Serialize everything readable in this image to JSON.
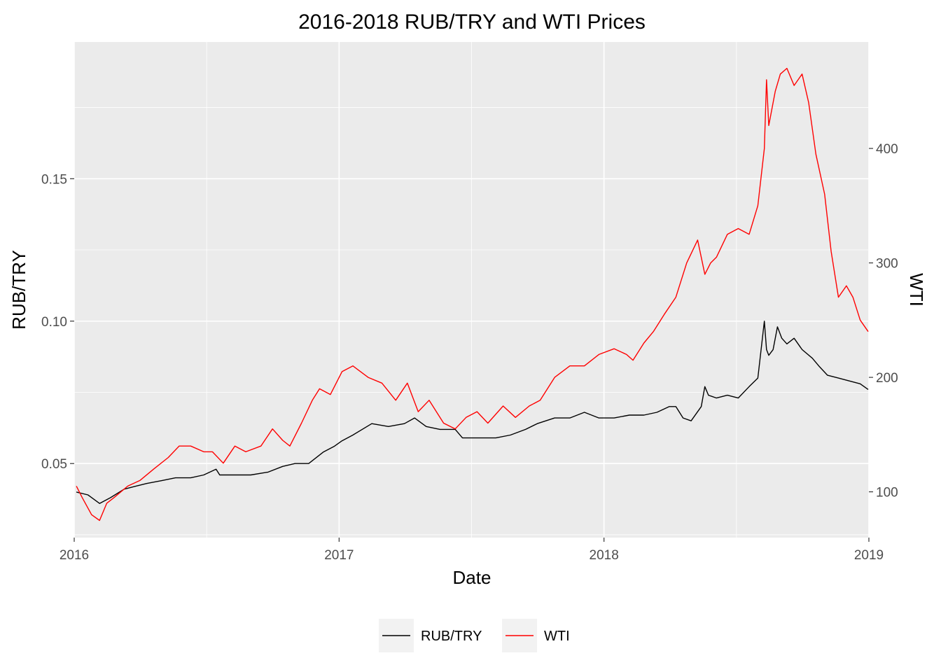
{
  "chart_data": {
    "type": "line",
    "title": "2016-2018 RUB/TRY and WTI Prices",
    "xlabel": "Date",
    "ylabel": "RUB/TRY",
    "y2label": "WTI",
    "xlim": [
      2016.0,
      2019.0
    ],
    "ylim": [
      0.024,
      0.198
    ],
    "y2lim": [
      60,
      493
    ],
    "x_ticks": [
      2016,
      2017,
      2018,
      2019
    ],
    "x_tick_labels": [
      "2016",
      "2017",
      "2018",
      "2019"
    ],
    "y_ticks": [
      0.05,
      0.1,
      0.15
    ],
    "y_tick_labels": [
      "0.05",
      "0.10",
      "0.15"
    ],
    "y2_ticks": [
      100,
      200,
      300,
      400
    ],
    "y2_tick_labels": [
      "100",
      "200",
      "300",
      "400"
    ],
    "grid": true,
    "legend": {
      "position": "bottom",
      "entries": [
        "RUB/TRY",
        "WTI"
      ]
    },
    "series": [
      {
        "name": "RUB/TRY",
        "axis": "left",
        "color": "#000000",
        "x": [
          "2016-01-04",
          "2016-01-20",
          "2016-02-05",
          "2016-02-20",
          "2016-03-10",
          "2016-03-25",
          "2016-04-10",
          "2016-05-01",
          "2016-05-20",
          "2016-06-10",
          "2016-06-28",
          "2016-07-15",
          "2016-07-20",
          "2016-08-10",
          "2016-09-01",
          "2016-09-25",
          "2016-10-15",
          "2016-11-01",
          "2016-11-20",
          "2016-12-10",
          "2016-12-25",
          "2017-01-05",
          "2017-01-20",
          "2017-02-15",
          "2017-03-10",
          "2017-04-01",
          "2017-04-15",
          "2017-05-01",
          "2017-05-20",
          "2017-06-10",
          "2017-06-20",
          "2017-07-15",
          "2017-08-05",
          "2017-08-25",
          "2017-09-15",
          "2017-10-01",
          "2017-10-25",
          "2017-11-15",
          "2017-12-05",
          "2017-12-25",
          "2018-01-15",
          "2018-02-05",
          "2018-02-25",
          "2018-03-15",
          "2018-04-01",
          "2018-04-10",
          "2018-04-20",
          "2018-05-01",
          "2018-05-15",
          "2018-05-20",
          "2018-05-25",
          "2018-06-05",
          "2018-06-20",
          "2018-07-05",
          "2018-07-20",
          "2018-08-01",
          "2018-08-10",
          "2018-08-13",
          "2018-08-16",
          "2018-08-22",
          "2018-08-28",
          "2018-09-03",
          "2018-09-10",
          "2018-09-20",
          "2018-10-01",
          "2018-10-15",
          "2018-10-25",
          "2018-11-05",
          "2018-11-20",
          "2018-12-05",
          "2018-12-20",
          "2018-12-31"
        ],
        "values": [
          0.04,
          0.039,
          0.036,
          0.038,
          0.041,
          0.042,
          0.043,
          0.044,
          0.045,
          0.045,
          0.046,
          0.048,
          0.046,
          0.046,
          0.046,
          0.047,
          0.049,
          0.05,
          0.05,
          0.054,
          0.056,
          0.058,
          0.06,
          0.064,
          0.063,
          0.064,
          0.066,
          0.063,
          0.062,
          0.062,
          0.059,
          0.059,
          0.059,
          0.06,
          0.062,
          0.064,
          0.066,
          0.066,
          0.068,
          0.066,
          0.066,
          0.067,
          0.067,
          0.068,
          0.07,
          0.07,
          0.066,
          0.065,
          0.07,
          0.077,
          0.074,
          0.073,
          0.074,
          0.073,
          0.077,
          0.08,
          0.1,
          0.09,
          0.088,
          0.09,
          0.098,
          0.094,
          0.092,
          0.094,
          0.09,
          0.087,
          0.084,
          0.081,
          0.08,
          0.079,
          0.078,
          0.076
        ]
      },
      {
        "name": "WTI",
        "axis": "right",
        "color": "#ff0000",
        "x": [
          "2016-01-04",
          "2016-01-12",
          "2016-01-25",
          "2016-02-05",
          "2016-02-15",
          "2016-02-25",
          "2016-03-15",
          "2016-04-01",
          "2016-04-20",
          "2016-05-10",
          "2016-05-25",
          "2016-06-10",
          "2016-06-28",
          "2016-07-10",
          "2016-07-25",
          "2016-08-10",
          "2016-08-25",
          "2016-09-15",
          "2016-10-01",
          "2016-10-15",
          "2016-10-25",
          "2016-11-10",
          "2016-11-25",
          "2016-12-05",
          "2016-12-20",
          "2017-01-05",
          "2017-01-20",
          "2017-02-10",
          "2017-03-01",
          "2017-03-20",
          "2017-04-05",
          "2017-04-20",
          "2017-05-05",
          "2017-05-25",
          "2017-06-10",
          "2017-06-25",
          "2017-07-10",
          "2017-07-25",
          "2017-08-15",
          "2017-09-01",
          "2017-09-20",
          "2017-10-05",
          "2017-10-25",
          "2017-11-15",
          "2017-12-05",
          "2017-12-25",
          "2018-01-15",
          "2018-02-01",
          "2018-02-10",
          "2018-02-25",
          "2018-03-10",
          "2018-03-25",
          "2018-04-10",
          "2018-04-25",
          "2018-05-10",
          "2018-05-20",
          "2018-05-28",
          "2018-06-05",
          "2018-06-20",
          "2018-07-05",
          "2018-07-20",
          "2018-08-01",
          "2018-08-10",
          "2018-08-13",
          "2018-08-16",
          "2018-08-25",
          "2018-09-01",
          "2018-09-10",
          "2018-09-20",
          "2018-10-01",
          "2018-10-10",
          "2018-10-20",
          "2018-11-01",
          "2018-11-10",
          "2018-11-20",
          "2018-12-01",
          "2018-12-10",
          "2018-12-20",
          "2018-12-31"
        ],
        "values": [
          105,
          95,
          80,
          75,
          90,
          95,
          105,
          110,
          120,
          130,
          140,
          140,
          135,
          135,
          125,
          140,
          135,
          140,
          155,
          145,
          140,
          160,
          180,
          190,
          185,
          205,
          210,
          200,
          195,
          180,
          195,
          170,
          180,
          160,
          155,
          165,
          170,
          160,
          175,
          165,
          175,
          180,
          200,
          210,
          210,
          220,
          225,
          220,
          215,
          230,
          240,
          255,
          270,
          300,
          320,
          290,
          300,
          305,
          325,
          330,
          325,
          350,
          400,
          460,
          420,
          450,
          465,
          470,
          455,
          465,
          440,
          395,
          360,
          310,
          270,
          280,
          270,
          250,
          240
        ]
      }
    ]
  },
  "legend_labels": {
    "rub": "RUB/TRY",
    "wti": "WTI"
  }
}
